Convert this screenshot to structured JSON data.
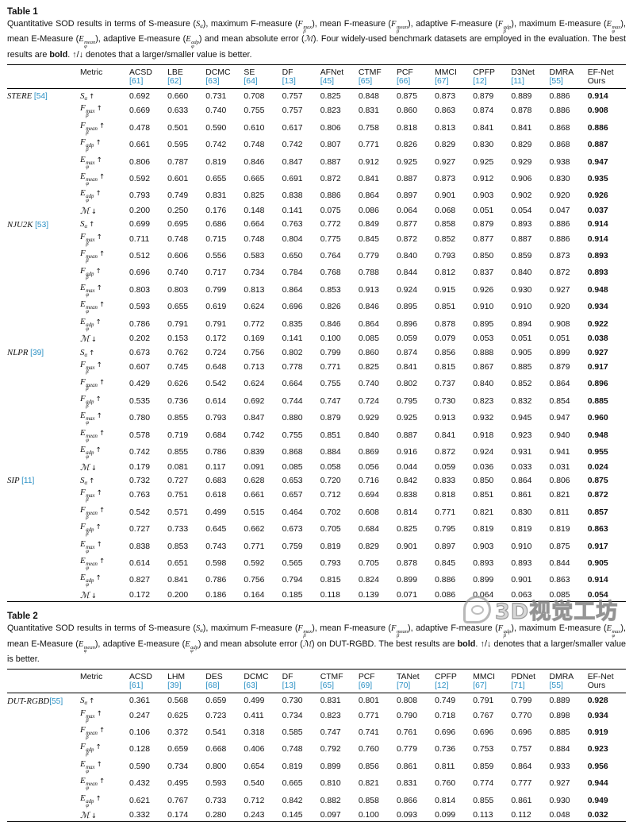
{
  "colors": {
    "citation": "#2b90c4",
    "text": "#111111",
    "rule": "#000000",
    "watermark_gray": "#7d7d7d"
  },
  "metrics": [
    {
      "key": "sa",
      "base": "S",
      "sub": "α",
      "sup": "",
      "arrow": "↑"
    },
    {
      "key": "fmax",
      "base": "F",
      "sub": "β",
      "sup": "max",
      "arrow": "↑"
    },
    {
      "key": "fmean",
      "base": "F",
      "sub": "β",
      "sup": "mean",
      "arrow": "↑"
    },
    {
      "key": "fadp",
      "base": "F",
      "sub": "β",
      "sup": "adp",
      "arrow": "↑"
    },
    {
      "key": "emax",
      "base": "E",
      "sub": "φ",
      "sup": "max",
      "arrow": "↑"
    },
    {
      "key": "emean",
      "base": "E",
      "sub": "φ",
      "sup": "mean",
      "arrow": "↑"
    },
    {
      "key": "eadp",
      "base": "E",
      "sub": "φ",
      "sup": "adp",
      "arrow": "↑"
    },
    {
      "key": "mae",
      "base": "ℳ",
      "sub": "",
      "sup": "",
      "arrow": "↓"
    }
  ],
  "table1": {
    "label": "Table 1",
    "metric_header": "Metric",
    "caption": [
      {
        "t": "text",
        "s": "Quantitative SOD results in terms of S-measure ("
      },
      {
        "t": "math",
        "base": "S",
        "sub": "α",
        "sup": ""
      },
      {
        "t": "text",
        "s": "), maximum F-measure ("
      },
      {
        "t": "math",
        "base": "F",
        "sub": "β",
        "sup": "max"
      },
      {
        "t": "text",
        "s": "), mean F-measure ("
      },
      {
        "t": "math",
        "base": "F",
        "sub": "β",
        "sup": "mean"
      },
      {
        "t": "text",
        "s": "), adaptive F-measure ("
      },
      {
        "t": "math",
        "base": "F",
        "sub": "β",
        "sup": "adp"
      },
      {
        "t": "text",
        "s": "), maximum E-measure ("
      },
      {
        "t": "math",
        "base": "E",
        "sub": "φ",
        "sup": "max"
      },
      {
        "t": "text",
        "s": "), mean E-Measure ("
      },
      {
        "t": "math",
        "base": "E",
        "sub": "φ",
        "sup": "mean"
      },
      {
        "t": "text",
        "s": "), adaptive E-measure ("
      },
      {
        "t": "math",
        "base": "E",
        "sub": "φ",
        "sup": "adp"
      },
      {
        "t": "text",
        "s": ") and mean absolute error ("
      },
      {
        "t": "math",
        "base": "ℳ",
        "sub": "",
        "sup": ""
      },
      {
        "t": "text",
        "s": "). Four widely-used benchmark datasets are employed in the evaluation. The best results are "
      },
      {
        "t": "bold",
        "s": "bold"
      },
      {
        "t": "text",
        "s": ". ↑/↓ denotes that a larger/smaller value is better."
      }
    ],
    "methods": [
      {
        "name": "ACSD",
        "ref": "[61]",
        "citation": true
      },
      {
        "name": "LBE",
        "ref": "[62]",
        "citation": true
      },
      {
        "name": "DCMC",
        "ref": "[63]",
        "citation": true
      },
      {
        "name": "SE",
        "ref": "[64]",
        "citation": true
      },
      {
        "name": "DF",
        "ref": "[13]",
        "citation": true
      },
      {
        "name": "AFNet",
        "ref": "[45]",
        "citation": true
      },
      {
        "name": "CTMF",
        "ref": "[65]",
        "citation": true
      },
      {
        "name": "PCF",
        "ref": "[66]",
        "citation": true
      },
      {
        "name": "MMCI",
        "ref": "[67]",
        "citation": true
      },
      {
        "name": "CPFP",
        "ref": "[12]",
        "citation": true
      },
      {
        "name": "D3Net",
        "ref": "[11]",
        "citation": true
      },
      {
        "name": "DMRA",
        "ref": "[55]",
        "citation": true
      },
      {
        "name": "EF-Net",
        "ref": "Ours",
        "citation": false
      }
    ],
    "groups": [
      {
        "dataset": "STERE",
        "ref": "[54]",
        "sep": " ",
        "values": [
          [
            "0.692",
            "0.660",
            "0.731",
            "0.708",
            "0.757",
            "0.825",
            "0.848",
            "0.875",
            "0.873",
            "0.879",
            "0.889",
            "0.886",
            "0.914"
          ],
          [
            "0.669",
            "0.633",
            "0.740",
            "0.755",
            "0.757",
            "0.823",
            "0.831",
            "0.860",
            "0.863",
            "0.874",
            "0.878",
            "0.886",
            "0.908"
          ],
          [
            "0.478",
            "0.501",
            "0.590",
            "0.610",
            "0.617",
            "0.806",
            "0.758",
            "0.818",
            "0.813",
            "0.841",
            "0.841",
            "0.868",
            "0.886"
          ],
          [
            "0.661",
            "0.595",
            "0.742",
            "0.748",
            "0.742",
            "0.807",
            "0.771",
            "0.826",
            "0.829",
            "0.830",
            "0.829",
            "0.868",
            "0.887"
          ],
          [
            "0.806",
            "0.787",
            "0.819",
            "0.846",
            "0.847",
            "0.887",
            "0.912",
            "0.925",
            "0.927",
            "0.925",
            "0.929",
            "0.938",
            "0.947"
          ],
          [
            "0.592",
            "0.601",
            "0.655",
            "0.665",
            "0.691",
            "0.872",
            "0.841",
            "0.887",
            "0.873",
            "0.912",
            "0.906",
            "0.830",
            "0.935"
          ],
          [
            "0.793",
            "0.749",
            "0.831",
            "0.825",
            "0.838",
            "0.886",
            "0.864",
            "0.897",
            "0.901",
            "0.903",
            "0.902",
            "0.920",
            "0.926"
          ],
          [
            "0.200",
            "0.250",
            "0.176",
            "0.148",
            "0.141",
            "0.075",
            "0.086",
            "0.064",
            "0.068",
            "0.051",
            "0.054",
            "0.047",
            "0.037"
          ]
        ]
      },
      {
        "dataset": "NJU2K",
        "ref": "[53]",
        "sep": " ",
        "values": [
          [
            "0.699",
            "0.695",
            "0.686",
            "0.664",
            "0.763",
            "0.772",
            "0.849",
            "0.877",
            "0.858",
            "0.879",
            "0.893",
            "0.886",
            "0.914"
          ],
          [
            "0.711",
            "0.748",
            "0.715",
            "0.748",
            "0.804",
            "0.775",
            "0.845",
            "0.872",
            "0.852",
            "0.877",
            "0.887",
            "0.886",
            "0.914"
          ],
          [
            "0.512",
            "0.606",
            "0.556",
            "0.583",
            "0.650",
            "0.764",
            "0.779",
            "0.840",
            "0.793",
            "0.850",
            "0.859",
            "0.873",
            "0.893"
          ],
          [
            "0.696",
            "0.740",
            "0.717",
            "0.734",
            "0.784",
            "0.768",
            "0.788",
            "0.844",
            "0.812",
            "0.837",
            "0.840",
            "0.872",
            "0.893"
          ],
          [
            "0.803",
            "0.803",
            "0.799",
            "0.813",
            "0.864",
            "0.853",
            "0.913",
            "0.924",
            "0.915",
            "0.926",
            "0.930",
            "0.927",
            "0.948"
          ],
          [
            "0.593",
            "0.655",
            "0.619",
            "0.624",
            "0.696",
            "0.826",
            "0.846",
            "0.895",
            "0.851",
            "0.910",
            "0.910",
            "0.920",
            "0.934"
          ],
          [
            "0.786",
            "0.791",
            "0.791",
            "0.772",
            "0.835",
            "0.846",
            "0.864",
            "0.896",
            "0.878",
            "0.895",
            "0.894",
            "0.908",
            "0.922"
          ],
          [
            "0.202",
            "0.153",
            "0.172",
            "0.169",
            "0.141",
            "0.100",
            "0.085",
            "0.059",
            "0.079",
            "0.053",
            "0.051",
            "0.051",
            "0.038"
          ]
        ]
      },
      {
        "dataset": "NLPR",
        "ref": "[39]",
        "sep": " ",
        "values": [
          [
            "0.673",
            "0.762",
            "0.724",
            "0.756",
            "0.802",
            "0.799",
            "0.860",
            "0.874",
            "0.856",
            "0.888",
            "0.905",
            "0.899",
            "0.927"
          ],
          [
            "0.607",
            "0.745",
            "0.648",
            "0.713",
            "0.778",
            "0.771",
            "0.825",
            "0.841",
            "0.815",
            "0.867",
            "0.885",
            "0.879",
            "0.917"
          ],
          [
            "0.429",
            "0.626",
            "0.542",
            "0.624",
            "0.664",
            "0.755",
            "0.740",
            "0.802",
            "0.737",
            "0.840",
            "0.852",
            "0.864",
            "0.896"
          ],
          [
            "0.535",
            "0.736",
            "0.614",
            "0.692",
            "0.744",
            "0.747",
            "0.724",
            "0.795",
            "0.730",
            "0.823",
            "0.832",
            "0.854",
            "0.885"
          ],
          [
            "0.780",
            "0.855",
            "0.793",
            "0.847",
            "0.880",
            "0.879",
            "0.929",
            "0.925",
            "0.913",
            "0.932",
            "0.945",
            "0.947",
            "0.960"
          ],
          [
            "0.578",
            "0.719",
            "0.684",
            "0.742",
            "0.755",
            "0.851",
            "0.840",
            "0.887",
            "0.841",
            "0.918",
            "0.923",
            "0.940",
            "0.948"
          ],
          [
            "0.742",
            "0.855",
            "0.786",
            "0.839",
            "0.868",
            "0.884",
            "0.869",
            "0.916",
            "0.872",
            "0.924",
            "0.931",
            "0.941",
            "0.955"
          ],
          [
            "0.179",
            "0.081",
            "0.117",
            "0.091",
            "0.085",
            "0.058",
            "0.056",
            "0.044",
            "0.059",
            "0.036",
            "0.033",
            "0.031",
            "0.024"
          ]
        ]
      },
      {
        "dataset": "SIP",
        "ref": "[11]",
        "sep": " ",
        "values": [
          [
            "0.732",
            "0.727",
            "0.683",
            "0.628",
            "0.653",
            "0.720",
            "0.716",
            "0.842",
            "0.833",
            "0.850",
            "0.864",
            "0.806",
            "0.875"
          ],
          [
            "0.763",
            "0.751",
            "0.618",
            "0.661",
            "0.657",
            "0.712",
            "0.694",
            "0.838",
            "0.818",
            "0.851",
            "0.861",
            "0.821",
            "0.872"
          ],
          [
            "0.542",
            "0.571",
            "0.499",
            "0.515",
            "0.464",
            "0.702",
            "0.608",
            "0.814",
            "0.771",
            "0.821",
            "0.830",
            "0.811",
            "0.857"
          ],
          [
            "0.727",
            "0.733",
            "0.645",
            "0.662",
            "0.673",
            "0.705",
            "0.684",
            "0.825",
            "0.795",
            "0.819",
            "0.819",
            "0.819",
            "0.863"
          ],
          [
            "0.838",
            "0.853",
            "0.743",
            "0.771",
            "0.759",
            "0.819",
            "0.829",
            "0.901",
            "0.897",
            "0.903",
            "0.910",
            "0.875",
            "0.917"
          ],
          [
            "0.614",
            "0.651",
            "0.598",
            "0.592",
            "0.565",
            "0.793",
            "0.705",
            "0.878",
            "0.845",
            "0.893",
            "0.893",
            "0.844",
            "0.905"
          ],
          [
            "0.827",
            "0.841",
            "0.786",
            "0.756",
            "0.794",
            "0.815",
            "0.824",
            "0.899",
            "0.886",
            "0.899",
            "0.901",
            "0.863",
            "0.914"
          ],
          [
            "0.172",
            "0.200",
            "0.186",
            "0.164",
            "0.185",
            "0.118",
            "0.139",
            "0.071",
            "0.086",
            "0.064",
            "0.063",
            "0.085",
            "0.054"
          ]
        ]
      }
    ]
  },
  "table2": {
    "label": "Table 2",
    "metric_header": "Metric",
    "caption": [
      {
        "t": "text",
        "s": "Quantitative SOD results in terms of S-measure ("
      },
      {
        "t": "math",
        "base": "S",
        "sub": "α",
        "sup": ""
      },
      {
        "t": "text",
        "s": "), maximum F-measure ("
      },
      {
        "t": "math",
        "base": "F",
        "sub": "β",
        "sup": "max"
      },
      {
        "t": "text",
        "s": "), mean F-measure ("
      },
      {
        "t": "math",
        "base": "F",
        "sub": "β",
        "sup": "mean"
      },
      {
        "t": "text",
        "s": "), adaptive F-measure ("
      },
      {
        "t": "math",
        "base": "F",
        "sub": "β",
        "sup": "adp"
      },
      {
        "t": "text",
        "s": "), maximum E-measure ("
      },
      {
        "t": "math",
        "base": "E",
        "sub": "φ",
        "sup": "max"
      },
      {
        "t": "text",
        "s": "), mean E-Measure ("
      },
      {
        "t": "math",
        "base": "E",
        "sub": "φ",
        "sup": "mean"
      },
      {
        "t": "text",
        "s": "), adaptive E-measure ("
      },
      {
        "t": "math",
        "base": "E",
        "sub": "φ",
        "sup": "adp"
      },
      {
        "t": "text",
        "s": ") and mean absolute error ("
      },
      {
        "t": "math",
        "base": "ℳ",
        "sub": "",
        "sup": ""
      },
      {
        "t": "text",
        "s": ") on DUT-RGBD. The best results are "
      },
      {
        "t": "bold",
        "s": "bold"
      },
      {
        "t": "text",
        "s": ". ↑/↓ denotes that a larger/smaller value is better."
      }
    ],
    "methods": [
      {
        "name": "ACSD",
        "ref": "[61]",
        "citation": true
      },
      {
        "name": "LHM",
        "ref": "[39]",
        "citation": true
      },
      {
        "name": "DES",
        "ref": "[68]",
        "citation": true
      },
      {
        "name": "DCMC",
        "ref": "[63]",
        "citation": true
      },
      {
        "name": "DF",
        "ref": "[13]",
        "citation": true
      },
      {
        "name": "CTMF",
        "ref": "[65]",
        "citation": true
      },
      {
        "name": "PCF",
        "ref": "[69]",
        "citation": true
      },
      {
        "name": "TANet",
        "ref": "[70]",
        "citation": true
      },
      {
        "name": "CPFP",
        "ref": "[12]",
        "citation": true
      },
      {
        "name": "MMCI",
        "ref": "[67]",
        "citation": true
      },
      {
        "name": "PDNet",
        "ref": "[71]",
        "citation": true
      },
      {
        "name": "DMRA",
        "ref": "[55]",
        "citation": true
      },
      {
        "name": "EF-Net",
        "ref": "Ours",
        "citation": false
      }
    ],
    "groups": [
      {
        "dataset": "DUT-RGBD",
        "ref": "[55]",
        "sep": "",
        "values": [
          [
            "0.361",
            "0.568",
            "0.659",
            "0.499",
            "0.730",
            "0.831",
            "0.801",
            "0.808",
            "0.749",
            "0.791",
            "0.799",
            "0.889",
            "0.928"
          ],
          [
            "0.247",
            "0.625",
            "0.723",
            "0.411",
            "0.734",
            "0.823",
            "0.771",
            "0.790",
            "0.718",
            "0.767",
            "0.770",
            "0.898",
            "0.934"
          ],
          [
            "0.106",
            "0.372",
            "0.541",
            "0.318",
            "0.585",
            "0.747",
            "0.741",
            "0.761",
            "0.696",
            "0.696",
            "0.696",
            "0.885",
            "0.919"
          ],
          [
            "0.128",
            "0.659",
            "0.668",
            "0.406",
            "0.748",
            "0.792",
            "0.760",
            "0.779",
            "0.736",
            "0.753",
            "0.757",
            "0.884",
            "0.923"
          ],
          [
            "0.590",
            "0.734",
            "0.800",
            "0.654",
            "0.819",
            "0.899",
            "0.856",
            "0.861",
            "0.811",
            "0.859",
            "0.864",
            "0.933",
            "0.956"
          ],
          [
            "0.432",
            "0.495",
            "0.593",
            "0.540",
            "0.665",
            "0.810",
            "0.821",
            "0.831",
            "0.760",
            "0.774",
            "0.777",
            "0.927",
            "0.944"
          ],
          [
            "0.621",
            "0.767",
            "0.733",
            "0.712",
            "0.842",
            "0.882",
            "0.858",
            "0.866",
            "0.814",
            "0.855",
            "0.861",
            "0.930",
            "0.949"
          ],
          [
            "0.332",
            "0.174",
            "0.280",
            "0.243",
            "0.145",
            "0.097",
            "0.100",
            "0.093",
            "0.099",
            "0.113",
            "0.112",
            "0.048",
            "0.032"
          ]
        ]
      }
    ]
  },
  "watermark": {
    "text": "3D视觉工坊",
    "logo": "speech-bubble-logo"
  }
}
